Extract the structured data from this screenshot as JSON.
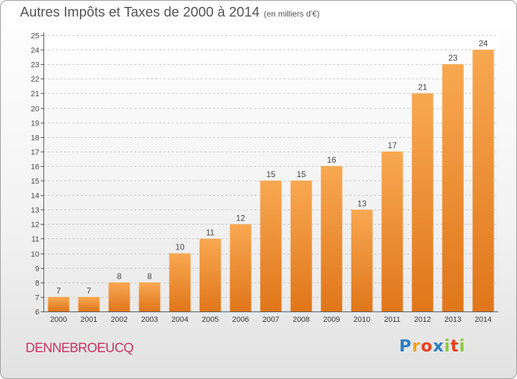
{
  "header": {
    "title": "Autres Impôts et Taxes de 2000 à 2014",
    "subtitle": "(en milliers d'€)"
  },
  "footer": {
    "commune": "DENNEBROEUCQ",
    "logo_letters": [
      "P",
      "r",
      "o",
      "x",
      "i",
      "t",
      "i"
    ],
    "logo_colors": [
      "#2d7fc1",
      "#f0a020",
      "#e8401c",
      "#2d7fc1",
      "#8cc63f",
      "#e8401c",
      "#8cc63f"
    ]
  },
  "chart_data": {
    "type": "bar",
    "categories": [
      "2000",
      "2001",
      "2002",
      "2003",
      "2004",
      "2005",
      "2006",
      "2007",
      "2008",
      "2009",
      "2010",
      "2011",
      "2012",
      "2013",
      "2014"
    ],
    "values": [
      7,
      7,
      8,
      8,
      10,
      11,
      12,
      15,
      15,
      16,
      13,
      17,
      21,
      23,
      24
    ],
    "ylim": [
      6,
      25
    ],
    "yticks": [
      6,
      7,
      8,
      9,
      10,
      11,
      12,
      13,
      14,
      15,
      16,
      17,
      18,
      19,
      20,
      21,
      22,
      23,
      24,
      25
    ],
    "grid": true,
    "bar_color": "#f09a45"
  }
}
